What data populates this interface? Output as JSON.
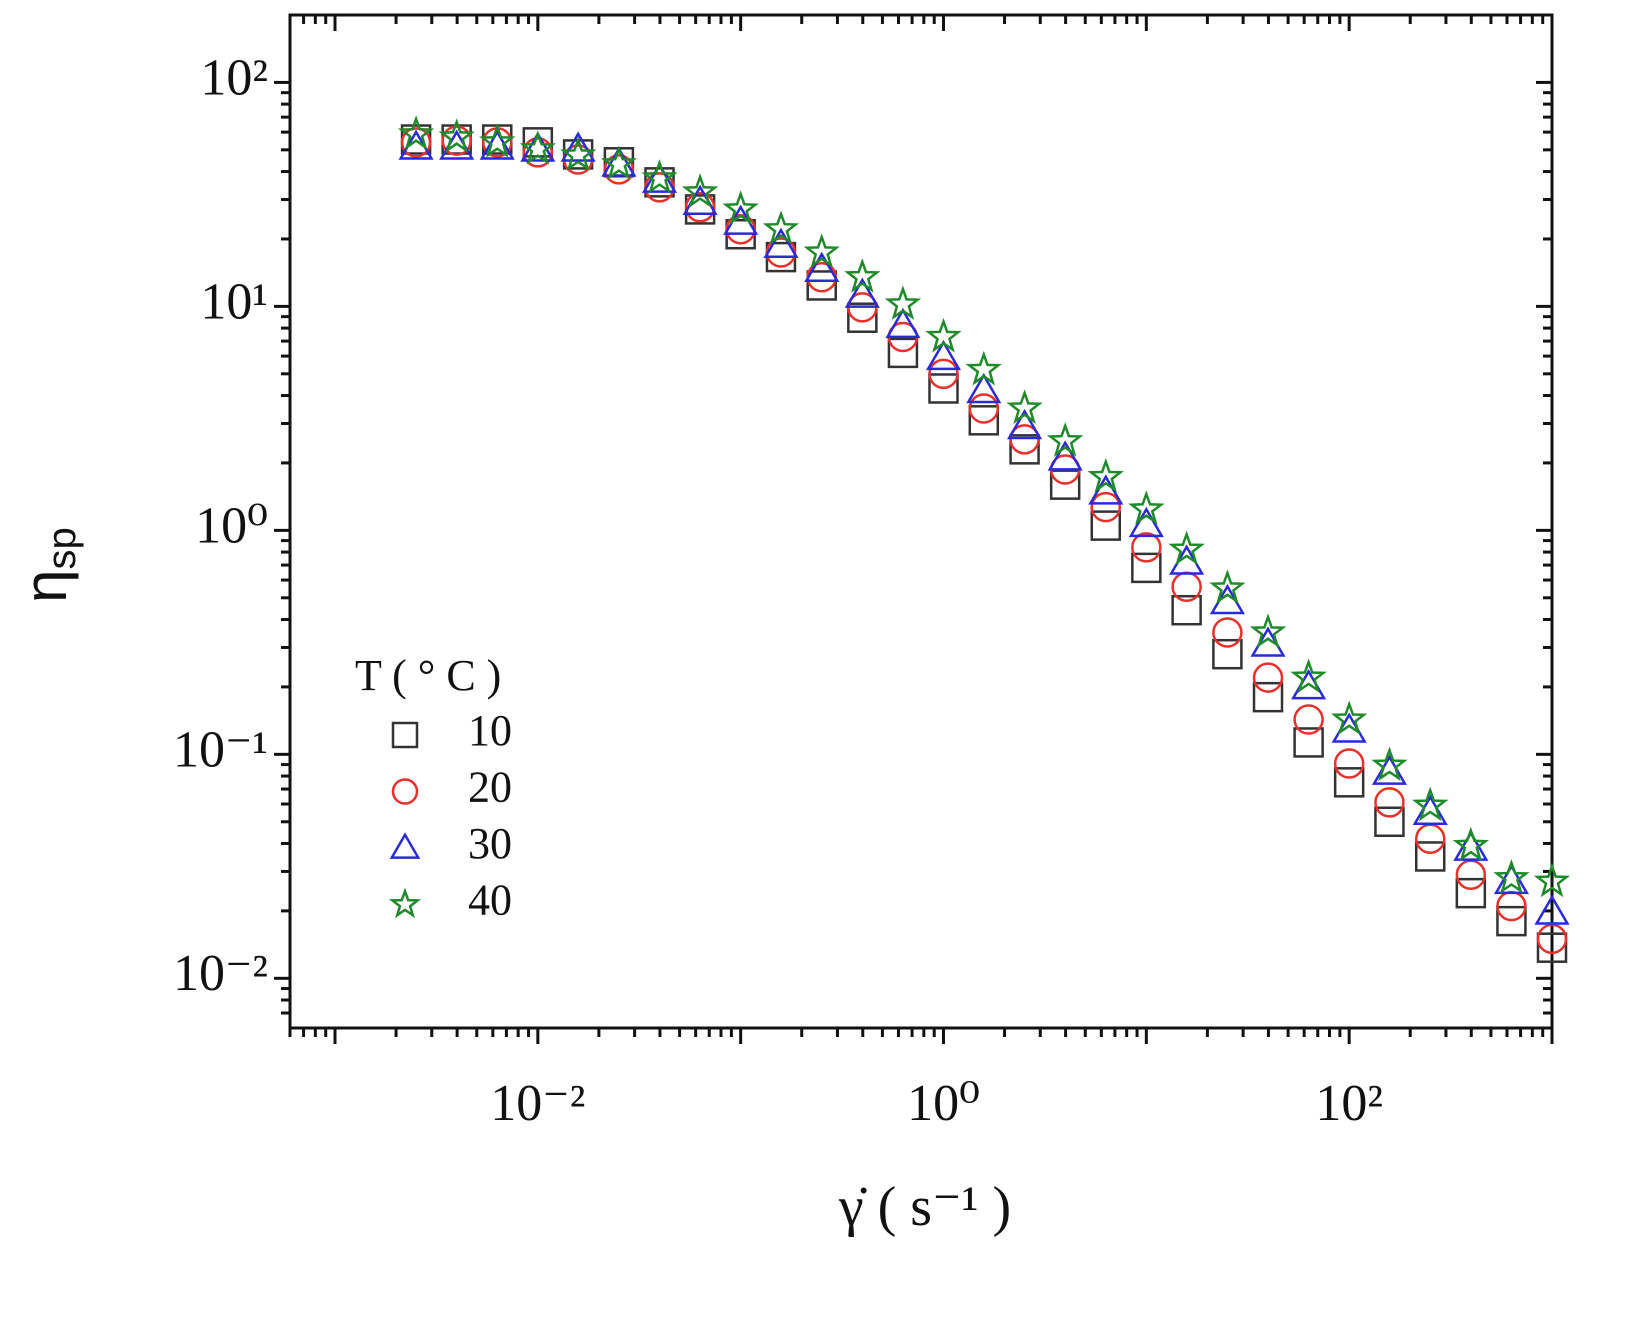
{
  "chart_data": {
    "type": "scatter",
    "xlabel": "γ̇ ( s⁻¹ )",
    "ylabel": "η",
    "ylabel_sub": "sp",
    "xscale": "log",
    "yscale": "log",
    "xlim": [
      0.0006,
      1000
    ],
    "ylim": [
      0.006,
      200
    ],
    "xticks": [
      {
        "value": 0.001,
        "label": null
      },
      {
        "value": 0.01,
        "label": "10⁻²"
      },
      {
        "value": 0.1,
        "label": null
      },
      {
        "value": 1,
        "label": "10⁰"
      },
      {
        "value": 10,
        "label": null
      },
      {
        "value": 100,
        "label": "10²"
      },
      {
        "value": 1000,
        "label": null
      }
    ],
    "yticks": [
      {
        "value": 0.01,
        "label": "10⁻²"
      },
      {
        "value": 0.1,
        "label": "10⁻¹"
      },
      {
        "value": 1,
        "label": "10⁰"
      },
      {
        "value": 10,
        "label": "10¹"
      },
      {
        "value": 100,
        "label": "10²"
      }
    ],
    "minor_ticks": true,
    "legend_title": "T ( ° C )",
    "legend_position": "lower-left",
    "x": [
      0.00251,
      0.00398,
      0.00631,
      0.01,
      0.0158,
      0.0251,
      0.0398,
      0.0631,
      0.1,
      0.158,
      0.251,
      0.398,
      0.631,
      1,
      1.58,
      2.51,
      3.98,
      6.31,
      10,
      15.8,
      25.1,
      39.8,
      63.1,
      100,
      158,
      251,
      398,
      631,
      1000
    ],
    "series": [
      {
        "name": "10",
        "color": "#333333",
        "marker": "square",
        "values": [
          55.6,
          55.6,
          55.6,
          54,
          47.7,
          44,
          35.8,
          27.1,
          21,
          16.6,
          12.4,
          8.9,
          6.2,
          4.3,
          3.1,
          2.3,
          1.6,
          1.05,
          0.68,
          0.44,
          0.28,
          0.18,
          0.113,
          0.075,
          0.05,
          0.035,
          0.024,
          0.018,
          0.0137
        ]
      },
      {
        "name": "20",
        "color": "#e8302c",
        "marker": "circle",
        "values": [
          54,
          55,
          54,
          48.7,
          45.3,
          40.9,
          34,
          27.7,
          22.1,
          17.4,
          13.5,
          9.9,
          7.3,
          5.0,
          3.5,
          2.55,
          1.87,
          1.27,
          0.84,
          0.56,
          0.35,
          0.22,
          0.143,
          0.091,
          0.061,
          0.042,
          0.029,
          0.021,
          0.015
        ]
      },
      {
        "name": "30",
        "color": "#2a2ad8",
        "marker": "triangle",
        "values": [
          51.3,
          51.3,
          51.3,
          50.3,
          50.3,
          43.1,
          36.5,
          29.1,
          23.7,
          18.7,
          14.6,
          11.2,
          8.2,
          5.9,
          4.2,
          2.9,
          2.1,
          1.48,
          1.06,
          0.72,
          0.48,
          0.31,
          0.2,
          0.128,
          0.083,
          0.055,
          0.038,
          0.027,
          0.0197
        ]
      },
      {
        "name": "40",
        "color": "#1f8a2a",
        "marker": "star",
        "values": [
          58.6,
          56.8,
          54,
          50.3,
          47.2,
          43.1,
          37.3,
          32.3,
          27.1,
          22.1,
          17.4,
          13.5,
          10.2,
          7.3,
          5.2,
          3.5,
          2.5,
          1.73,
          1.24,
          0.82,
          0.55,
          0.35,
          0.22,
          0.143,
          0.089,
          0.059,
          0.039,
          0.028,
          0.027
        ]
      }
    ]
  }
}
